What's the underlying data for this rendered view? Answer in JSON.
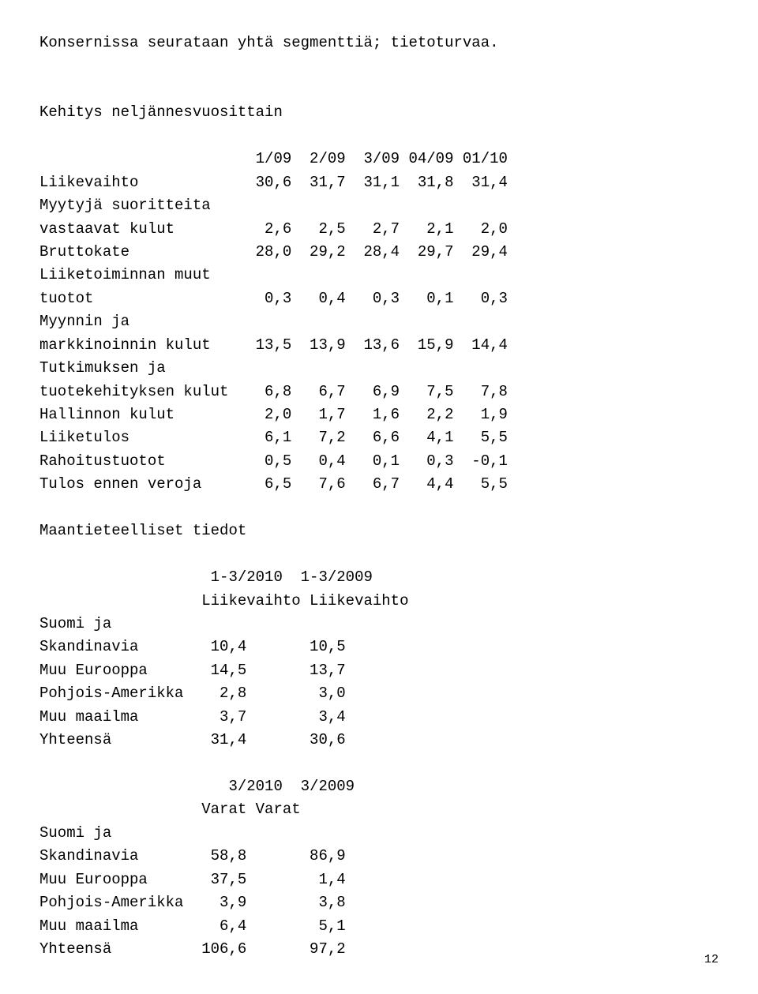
{
  "intro": "Konsernissa seurataan yhtä segmenttiä; tietoturvaa.",
  "quarterly": {
    "title": "Kehitys neljännesvuosittain",
    "cols": [
      "1/09",
      "2/09",
      "3/09",
      "04/09",
      "01/10"
    ],
    "rows": [
      {
        "label": "Liikevaihto",
        "v": [
          "30,6",
          "31,7",
          "31,1",
          "31,8",
          "31,4"
        ]
      },
      {
        "label": "Myytyjä suoritteita",
        "v": null
      },
      {
        "label": "vastaavat kulut",
        "v": [
          "2,6",
          "2,5",
          "2,7",
          "2,1",
          "2,0"
        ]
      },
      {
        "label": "Bruttokate",
        "v": [
          "28,0",
          "29,2",
          "28,4",
          "29,7",
          "29,4"
        ]
      },
      {
        "label": "Liiketoiminnan muut",
        "v": null
      },
      {
        "label": "tuotot",
        "v": [
          "0,3",
          "0,4",
          "0,3",
          "0,1",
          "0,3"
        ]
      },
      {
        "label": "Myynnin ja",
        "v": null
      },
      {
        "label": "markkinoinnin kulut",
        "v": [
          "13,5",
          "13,9",
          "13,6",
          "15,9",
          "14,4"
        ]
      },
      {
        "label": "Tutkimuksen ja",
        "v": null
      },
      {
        "label": "tuotekehityksen kulut",
        "v": [
          "6,8",
          "6,7",
          "6,9",
          "7,5",
          "7,8"
        ]
      },
      {
        "label": "Hallinnon kulut",
        "v": [
          "2,0",
          "1,7",
          "1,6",
          "2,2",
          "1,9"
        ]
      },
      {
        "label": "Liiketulos",
        "v": [
          "6,1",
          "7,2",
          "6,6",
          "4,1",
          "5,5"
        ]
      },
      {
        "label": "Rahoitustuotot",
        "v": [
          "0,5",
          "0,4",
          "0,1",
          "0,3",
          "-0,1"
        ]
      },
      {
        "label": "Tulos ennen veroja",
        "v": [
          "6,5",
          "7,6",
          "6,7",
          "4,4",
          "5,5"
        ]
      }
    ]
  },
  "geo_title": "Maantieteelliset tiedot",
  "geo_rev": {
    "hdr1": [
      "1-3/2010",
      "1-3/2009"
    ],
    "hdr2": [
      "Liikevaihto",
      "Liikevaihto"
    ],
    "rowlead": "Suomi ja",
    "rows": [
      {
        "label": "Skandinavia",
        "v": [
          "10,4",
          "10,5"
        ]
      },
      {
        "label": "Muu Eurooppa",
        "v": [
          "14,5",
          "13,7"
        ]
      },
      {
        "label": "Pohjois-Amerikka",
        "v": [
          "2,8",
          "3,0"
        ]
      },
      {
        "label": "Muu maailma",
        "v": [
          "3,7",
          "3,4"
        ]
      },
      {
        "label": "Yhteensä",
        "v": [
          "31,4",
          "30,6"
        ]
      }
    ]
  },
  "geo_assets": {
    "hdr1": [
      "3/2010",
      "3/2009"
    ],
    "hdr2": [
      "Varat",
      "Varat"
    ],
    "rowlead": "Suomi ja",
    "rows": [
      {
        "label": "Skandinavia",
        "v": [
          "58,8",
          "86,9"
        ]
      },
      {
        "label": "Muu Eurooppa",
        "v": [
          "37,5",
          "1,4"
        ]
      },
      {
        "label": "Pohjois-Amerikka",
        "v": [
          "3,9",
          "3,8"
        ]
      },
      {
        "label": "Muu maailma",
        "v": [
          "6,4",
          "5,1"
        ]
      },
      {
        "label": "Yhteensä",
        "v": [
          "106,6",
          "97,2"
        ]
      }
    ]
  },
  "page_number": "12",
  "layout": {
    "label_width": 22,
    "qcol_width": 6,
    "geo_col1_width": 11,
    "geo_col2_width": 11,
    "geo_hdr_indent": 18
  }
}
